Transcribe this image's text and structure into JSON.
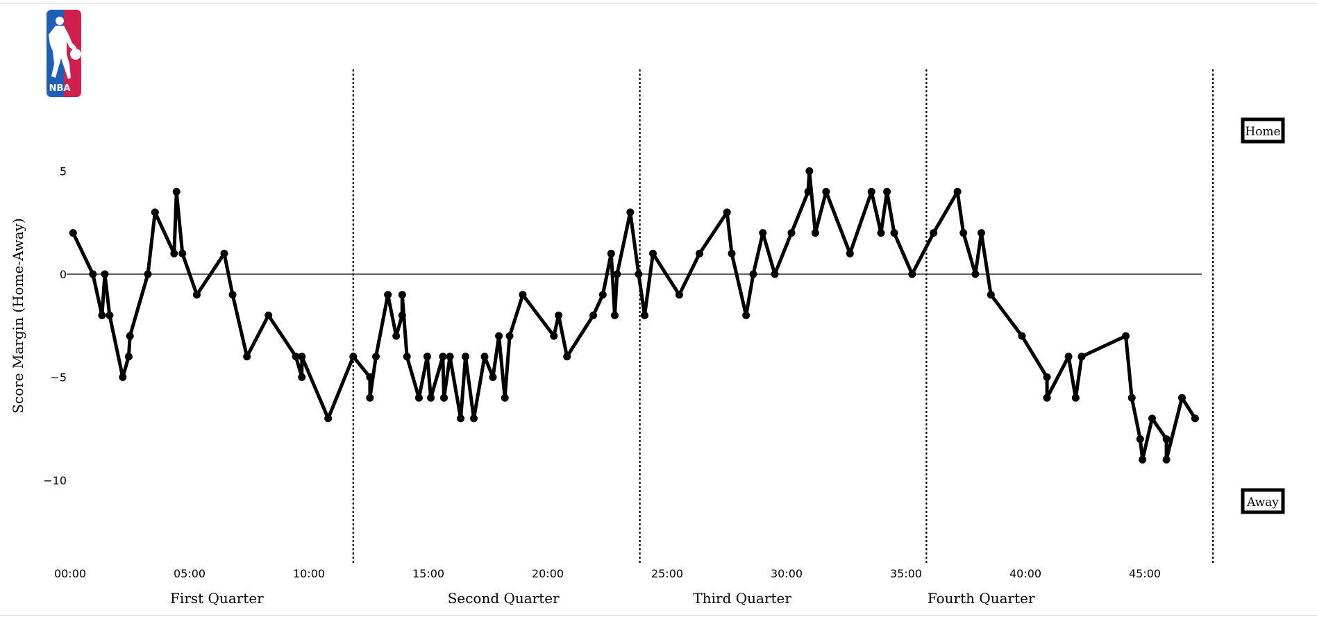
{
  "logo": {
    "text": "NBA",
    "colors": {
      "blue": "#1d5fb6",
      "red": "#d01e4f"
    }
  },
  "legend": {
    "home": "Home",
    "away": "Away"
  },
  "chart_data": {
    "type": "line",
    "ylabel": "Score Margin (Home-Away)",
    "xlabel": "",
    "x_unit": "minutes",
    "xlim": [
      0,
      48
    ],
    "ylim": [
      -14,
      10
    ],
    "x_ticks": [
      {
        "value": 0,
        "label": "00:00"
      },
      {
        "value": 5,
        "label": "05:00"
      },
      {
        "value": 10,
        "label": "10:00"
      },
      {
        "value": 15,
        "label": "15:00"
      },
      {
        "value": 20,
        "label": "20:00"
      },
      {
        "value": 25,
        "label": "25:00"
      },
      {
        "value": 30,
        "label": "30:00"
      },
      {
        "value": 35,
        "label": "35:00"
      },
      {
        "value": 40,
        "label": "40:00"
      },
      {
        "value": 45,
        "label": "45:00"
      }
    ],
    "y_ticks": [
      {
        "value": 5,
        "label": "5"
      },
      {
        "value": 0,
        "label": "0"
      },
      {
        "value": -5,
        "label": "−5"
      },
      {
        "value": -10,
        "label": "−10"
      }
    ],
    "quarter_boundaries": [
      12,
      24,
      36,
      48
    ],
    "quarters": [
      {
        "label": "First Quarter",
        "center": 6
      },
      {
        "label": "Second Quarter",
        "center": 18
      },
      {
        "label": "Third Quarter",
        "center": 28
      },
      {
        "label": "Fourth Quarter",
        "center": 38
      }
    ],
    "zero_line": true,
    "grid": false,
    "colors": {
      "line": "#000000"
    },
    "series": [
      {
        "x": [
          0.27,
          1.1,
          1.48,
          1.6,
          1.8,
          2.35,
          2.6,
          2.65,
          3.4,
          3.7,
          4.5,
          4.6,
          4.85,
          5.45,
          6.6,
          6.95,
          7.55,
          8.45,
          9.6,
          9.85,
          9.85,
          10.95,
          12,
          12.7,
          12.7,
          12.95,
          13.45,
          13.8,
          14.05,
          14.05,
          14.25,
          14.75,
          15.1,
          15.25,
          15.75,
          15.8,
          16.05,
          16.5,
          16.7,
          17.05,
          17.5,
          17.85,
          18.1,
          18.35,
          18.55,
          19.1,
          20.4,
          20.6,
          20.95,
          22.05,
          22.45,
          22.8,
          22.95,
          23.05,
          23.6,
          23.95,
          24.2,
          24.55,
          25.65,
          26.5,
          27.65,
          27.85,
          28.45,
          28.75,
          29.15,
          29.65,
          30.35,
          31.05,
          31.1,
          31.35,
          31.8,
          32.8,
          33.7,
          34.1,
          34.35,
          34.65,
          35.4,
          36.3,
          37.3,
          37.55,
          38.05,
          38.3,
          38.7,
          40,
          41.05,
          41.05,
          41.95,
          42.25,
          42.5,
          44.35,
          44.6,
          44.95,
          45.05,
          45.45,
          46.05,
          46.05,
          46.7,
          47.25
        ],
        "y": [
          2,
          0,
          -2,
          0,
          -2,
          -5,
          -4,
          -3,
          0,
          3,
          1,
          4,
          1,
          -1,
          1,
          -1,
          -4,
          -2,
          -4,
          -5,
          -4,
          -7,
          -4,
          -5,
          -6,
          -4,
          -1,
          -3,
          -2,
          -1,
          -4,
          -6,
          -4,
          -6,
          -4,
          -6,
          -4,
          -7,
          -4,
          -7,
          -4,
          -5,
          -3,
          -6,
          -3,
          -1,
          -3,
          -2,
          -4,
          -2,
          -1,
          1,
          -2,
          0,
          3,
          0,
          -2,
          1,
          -1,
          1,
          3,
          1,
          -2,
          0,
          2,
          0,
          2,
          4,
          5,
          2,
          4,
          1,
          4,
          2,
          4,
          2,
          0,
          2,
          4,
          2,
          0,
          2,
          -1,
          -3,
          -5,
          -6,
          -4,
          -6,
          -4,
          -3,
          -6,
          -8,
          -9,
          -7,
          -8,
          -9,
          -6,
          -7
        ]
      }
    ]
  }
}
